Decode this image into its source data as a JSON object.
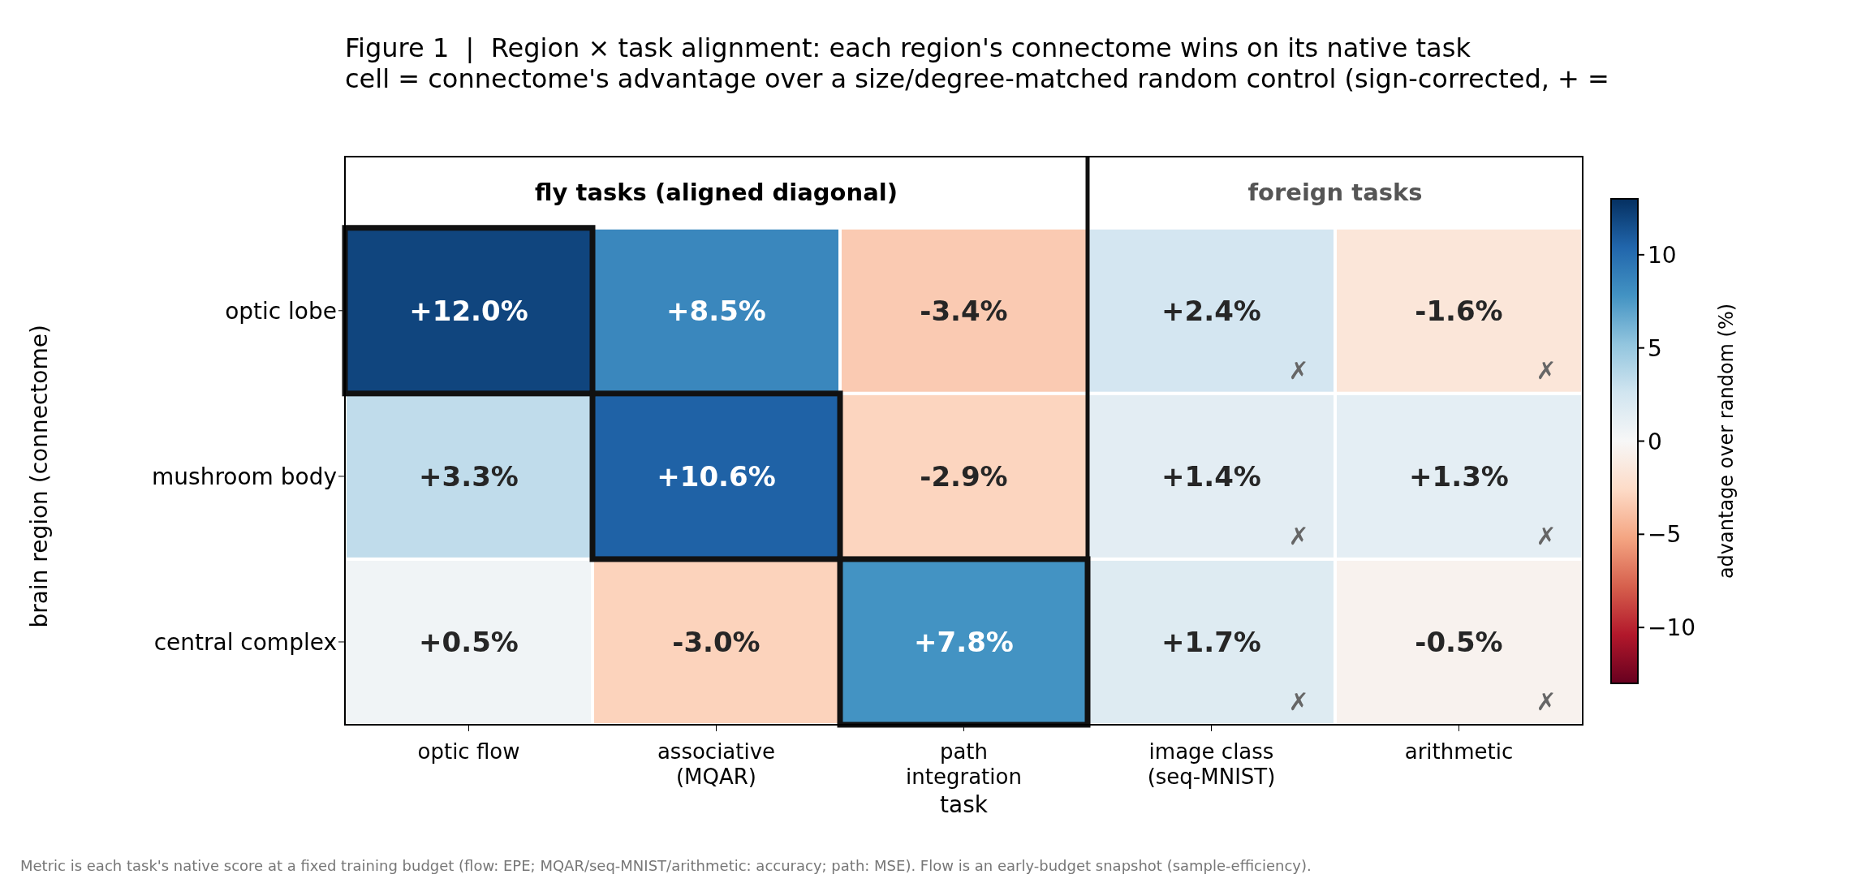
{
  "chart_data": {
    "type": "heatmap",
    "title": "Figure 1  |  Region × task alignment: each region's connectome wins on its native task",
    "subtitle": "cell = connectome's advantage over a size/degree-matched random control (sign-corrected, + =",
    "xlabel": "task",
    "ylabel": "brain region (connectome)",
    "clabel": "advantage over random (%)",
    "categories": [
      "optic flow",
      "associative\n(MQAR)",
      "path\nintegration",
      "image class\n(seq-MNIST)",
      "arithmetic"
    ],
    "y_categories": [
      "optic lobe",
      "mushroom body",
      "central complex"
    ],
    "cells": [
      [
        12.0,
        8.5,
        -3.4,
        2.4,
        -1.6
      ],
      [
        3.3,
        10.6,
        -2.9,
        1.4,
        1.3
      ],
      [
        0.5,
        -3.0,
        7.8,
        1.7,
        -0.5
      ]
    ],
    "cell_labels": [
      [
        "+12.0%",
        "+8.5%",
        "-3.4%",
        "+2.4%",
        "-1.6%"
      ],
      [
        "+3.3%",
        "+10.6%",
        "-2.9%",
        "+1.4%",
        "+1.3%"
      ],
      [
        "+0.5%",
        "-3.0%",
        "+7.8%",
        "+1.7%",
        "-0.5%"
      ]
    ],
    "clim": [
      -13,
      13
    ],
    "cticks": [
      {
        "value": -10,
        "label": "−10"
      },
      {
        "value": -5,
        "label": "−5"
      },
      0,
      5,
      10
    ],
    "annotations": [
      "fly tasks (aligned diagonal)",
      "foreign tasks",
      "Metric is each task's native score at a fixed training budget (flow: EPE; MQAR/seq-MNIST/arithmetic: accuracy; path: MSE). Flow is an early-budget snapshot (sample-efficiency).",
      "✗",
      "✗",
      "✗",
      "✗",
      "✗",
      "✗"
    ]
  }
}
